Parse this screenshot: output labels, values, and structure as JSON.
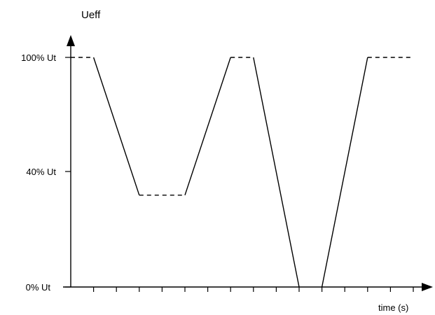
{
  "chart_data": {
    "type": "line",
    "title": "",
    "ylabel": "Ueff",
    "xlabel": "time (s)",
    "y_ticks": [
      {
        "value": 100,
        "label": "100% Ut"
      },
      {
        "value": 40,
        "label": "40% Ut"
      },
      {
        "value": 0,
        "label": "0% Ut"
      }
    ],
    "ylim": [
      0,
      100
    ],
    "xlim": [
      0,
      15
    ],
    "x_tick_count": 15,
    "segments": [
      {
        "style": "dashed",
        "points": [
          [
            0,
            100
          ],
          [
            1,
            100
          ]
        ]
      },
      {
        "style": "solid",
        "points": [
          [
            1,
            100
          ],
          [
            3,
            40
          ]
        ]
      },
      {
        "style": "dashed",
        "points": [
          [
            3,
            40
          ],
          [
            5,
            40
          ]
        ]
      },
      {
        "style": "solid",
        "points": [
          [
            5,
            40
          ],
          [
            7,
            100
          ]
        ]
      },
      {
        "style": "dashed",
        "points": [
          [
            7,
            100
          ],
          [
            8,
            100
          ]
        ]
      },
      {
        "style": "solid",
        "points": [
          [
            8,
            100
          ],
          [
            10,
            0
          ]
        ]
      },
      {
        "style": "solid",
        "points": [
          [
            11,
            0
          ],
          [
            13,
            100
          ]
        ]
      },
      {
        "style": "dashed",
        "points": [
          [
            13,
            100
          ],
          [
            15,
            100
          ]
        ]
      }
    ],
    "grid": false,
    "line_color": "#000000",
    "axis_color": "#000000"
  }
}
